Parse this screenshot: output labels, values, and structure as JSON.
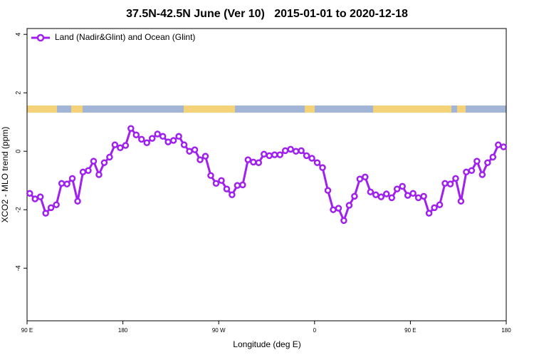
{
  "chart_data": {
    "type": "line",
    "title": "37.5N-42.5N June (Ver 10)   2015-01-01 to 2020-12-18",
    "x_label": "Longitude (deg E)",
    "y_label": "XCO2 - MLO trend (ppm)",
    "x": [
      92.5,
      97.5,
      102.5,
      107.5,
      112.5,
      117.5,
      122.5,
      127.5,
      132.5,
      137.5,
      142.5,
      147.5,
      152.5,
      157.5,
      162.5,
      167.5,
      172.5,
      177.5,
      182.5,
      187.5,
      192.5,
      197.5,
      202.5,
      207.5,
      212.5,
      217.5,
      222.5,
      227.5,
      232.5,
      237.5,
      242.5,
      247.5,
      252.5,
      257.5,
      262.5,
      267.5,
      272.5,
      277.5,
      282.5,
      287.5,
      292.5,
      297.5,
      302.5,
      307.5,
      312.5,
      317.5,
      322.5,
      327.5,
      332.5,
      337.5,
      342.5,
      347.5,
      352.5,
      357.5,
      362.5,
      367.5,
      372.5,
      377.5,
      382.5,
      387.5,
      392.5,
      397.5,
      402.5,
      407.5,
      412.5,
      417.5,
      422.5,
      427.5,
      432.5,
      437.5,
      442.5,
      447.5,
      452.5,
      457.5,
      462.5,
      467.5,
      472.5,
      477.5,
      482.5,
      487.5,
      492.5,
      497.5,
      502.5,
      507.5,
      512.5,
      517.5,
      522.5,
      527.5,
      532.5,
      537.5
    ],
    "series": [
      {
        "name": "Land (Nadir&Glint) and Ocean (Glint)",
        "color": "#a020f0",
        "values": [
          -1.44,
          -1.63,
          -1.56,
          -2.12,
          -1.93,
          -1.83,
          -1.1,
          -1.12,
          -0.93,
          -1.71,
          -0.71,
          -0.66,
          -0.34,
          -0.8,
          -0.39,
          -0.2,
          0.22,
          0.12,
          0.2,
          0.78,
          0.56,
          0.41,
          0.29,
          0.44,
          0.59,
          0.51,
          0.32,
          0.37,
          0.51,
          0.22,
          0.0,
          0.05,
          -0.29,
          -0.17,
          -0.83,
          -1.1,
          -1.0,
          -1.29,
          -1.49,
          -1.17,
          -1.15,
          -0.29,
          -0.37,
          -0.39,
          -0.1,
          -0.15,
          -0.12,
          -0.12,
          0.02,
          0.07,
          0.0,
          0.02,
          -0.15,
          -0.24,
          -0.39,
          -0.56,
          -1.34,
          -2.0,
          -1.95,
          -2.37,
          -1.85,
          -1.54,
          -0.95,
          -0.88,
          -1.39,
          -1.49,
          -1.56,
          -1.46,
          -1.59,
          -1.29,
          -1.2,
          -1.51,
          -1.44,
          -1.59,
          -1.54,
          -2.12,
          -1.93,
          -1.83,
          -1.1,
          -1.12,
          -0.93,
          -1.71,
          -0.71,
          -0.66,
          -0.34,
          -0.8,
          -0.39,
          -0.2,
          0.22,
          0.15
        ]
      }
    ],
    "xlim": [
      90,
      540
    ],
    "xticks": [
      {
        "value": 90,
        "label": "90 E"
      },
      {
        "value": 180,
        "label": "180"
      },
      {
        "value": 270,
        "label": "90 W"
      },
      {
        "value": 360,
        "label": "0"
      },
      {
        "value": 450,
        "label": "90 E"
      },
      {
        "value": 540,
        "label": "180"
      }
    ],
    "ylim": [
      -5.8,
      4.2
    ],
    "yticks": [
      -4,
      -2,
      0,
      2,
      4
    ],
    "legend": "top-left"
  }
}
